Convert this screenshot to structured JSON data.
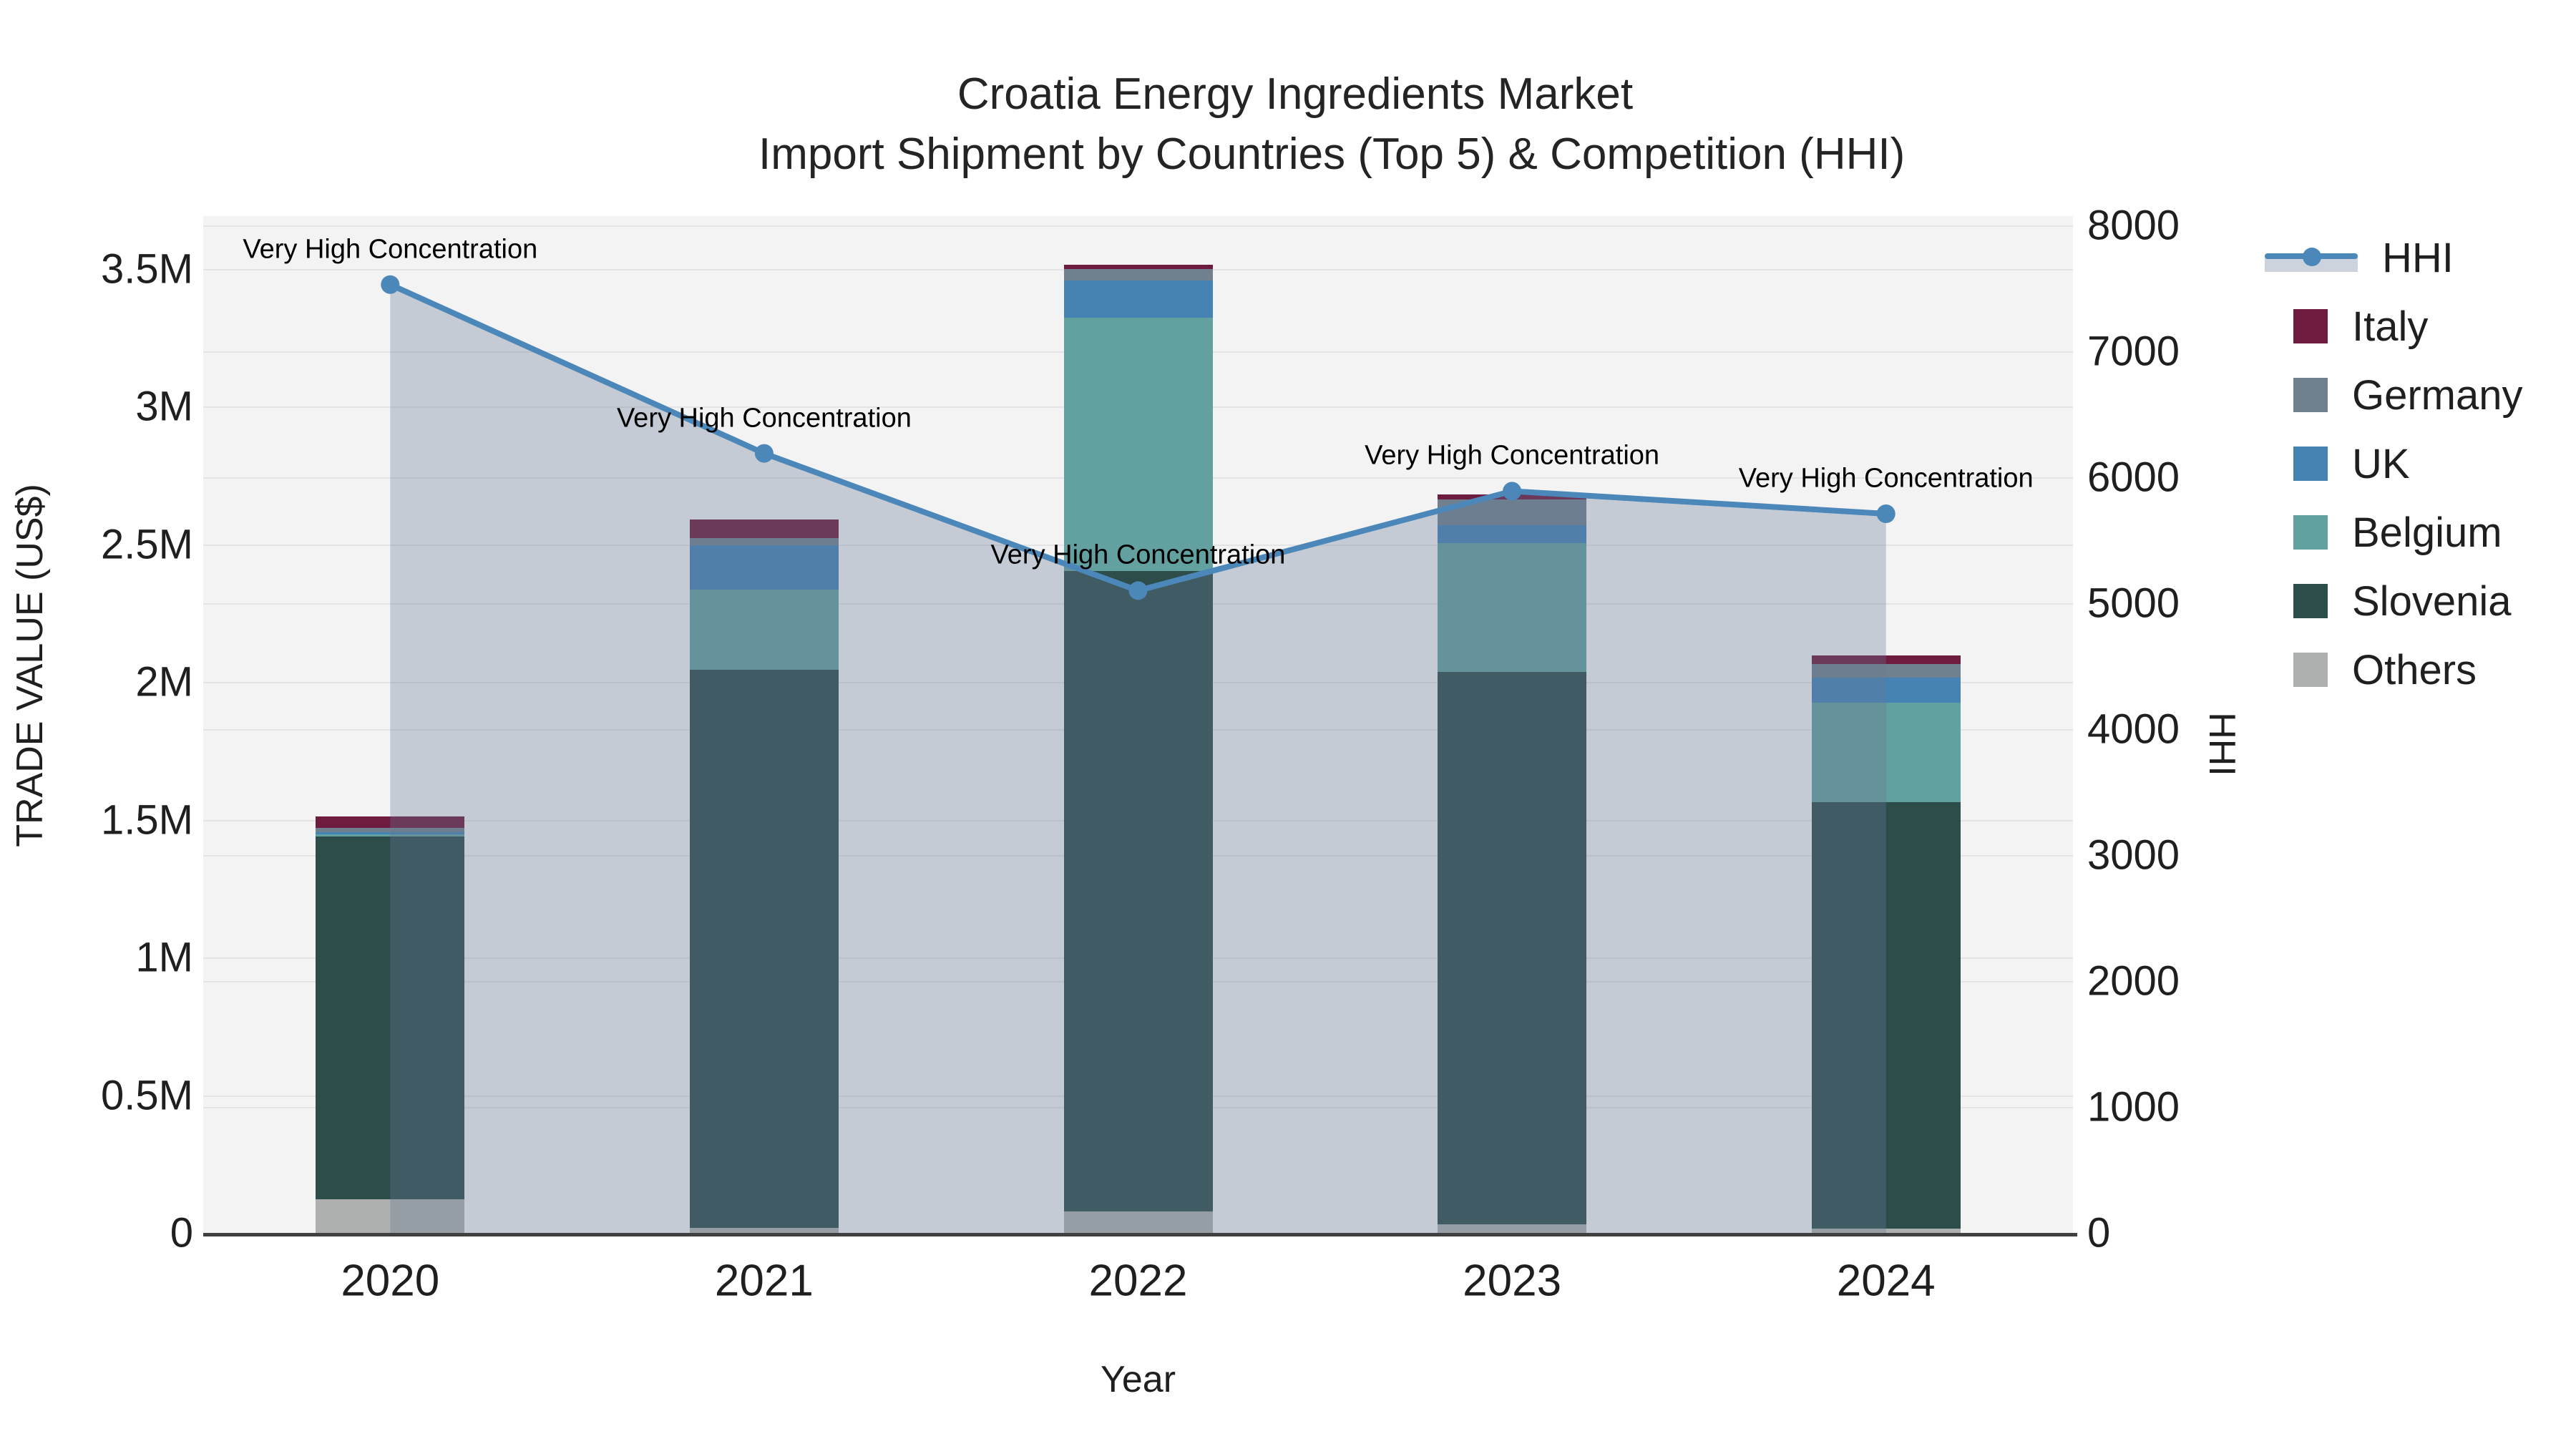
{
  "title": {
    "line1": "Croatia Energy Ingredients Market",
    "line2": "Import Shipment by Countries (Top 5) & Competition (HHI)"
  },
  "chart_data": {
    "type": "combo-stacked-bar-line",
    "categories": [
      "2020",
      "2021",
      "2022",
      "2023",
      "2024"
    ],
    "bar_series": [
      {
        "name": "Others",
        "color": "#adb0ae",
        "values": [
          122000,
          18000,
          78000,
          31000,
          16000
        ]
      },
      {
        "name": "Slovenia",
        "color": "#2d4d4b",
        "values": [
          1317000,
          2026000,
          2325000,
          2005000,
          1548000
        ]
      },
      {
        "name": "Belgium",
        "color": "#63a0a0",
        "values": [
          8000,
          291000,
          919000,
          468000,
          361000
        ]
      },
      {
        "name": "UK",
        "color": "#4583b5",
        "values": [
          8000,
          161000,
          136000,
          65000,
          91000
        ]
      },
      {
        "name": "Germany",
        "color": "#71808f",
        "values": [
          15000,
          26000,
          41000,
          93000,
          49000
        ]
      },
      {
        "name": "Italy",
        "color": "#6d1b3f",
        "values": [
          42000,
          68000,
          15000,
          19000,
          31000
        ]
      }
    ],
    "line_series": {
      "name": "HHI",
      "color": "#4c87b9",
      "fill_color": "rgba(104,122,148,0.33)",
      "values": [
        7530,
        6190,
        5100,
        5890,
        5710
      ]
    },
    "annotations": [
      {
        "category": "2020",
        "text": "Very High Concentration"
      },
      {
        "category": "2021",
        "text": "Very High Concentration"
      },
      {
        "category": "2022",
        "text": "Very High Concentration"
      },
      {
        "category": "2023",
        "text": "Very High Concentration"
      },
      {
        "category": "2024",
        "text": "Very High Concentration"
      }
    ],
    "x_axis": {
      "title": "Year"
    },
    "left_axis": {
      "title": "TRADE VALUE (US$)",
      "ticks": [
        {
          "label": "0",
          "value": 0
        },
        {
          "label": "0.5M",
          "value": 500000
        },
        {
          "label": "1M",
          "value": 1000000
        },
        {
          "label": "1.5M",
          "value": 1500000
        },
        {
          "label": "2M",
          "value": 2000000
        },
        {
          "label": "2.5M",
          "value": 2500000
        },
        {
          "label": "3M",
          "value": 3000000
        },
        {
          "label": "3.5M",
          "value": 3500000
        }
      ],
      "range": [
        0,
        3700000
      ]
    },
    "right_axis": {
      "title": "HHI",
      "ticks": [
        {
          "label": "0",
          "value": 0
        },
        {
          "label": "1000",
          "value": 1000
        },
        {
          "label": "2000",
          "value": 2000
        },
        {
          "label": "3000",
          "value": 3000
        },
        {
          "label": "4000",
          "value": 4000
        },
        {
          "label": "5000",
          "value": 5000
        },
        {
          "label": "6000",
          "value": 6000
        },
        {
          "label": "7000",
          "value": 7000
        },
        {
          "label": "8000",
          "value": 8000
        }
      ],
      "range": [
        0,
        8075
      ]
    },
    "grid": true,
    "legend_position": "right"
  },
  "legend": {
    "items": [
      {
        "label": "HHI",
        "type": "line",
        "color": "#4c87b9"
      },
      {
        "label": "Italy",
        "type": "square",
        "color": "#6d1b3f"
      },
      {
        "label": "Germany",
        "type": "square",
        "color": "#71808f"
      },
      {
        "label": "UK",
        "type": "square",
        "color": "#4583b5"
      },
      {
        "label": "Belgium",
        "type": "square",
        "color": "#63a0a0"
      },
      {
        "label": "Slovenia",
        "type": "square",
        "color": "#2d4d4b"
      },
      {
        "label": "Others",
        "type": "square",
        "color": "#adb0ae"
      }
    ]
  }
}
